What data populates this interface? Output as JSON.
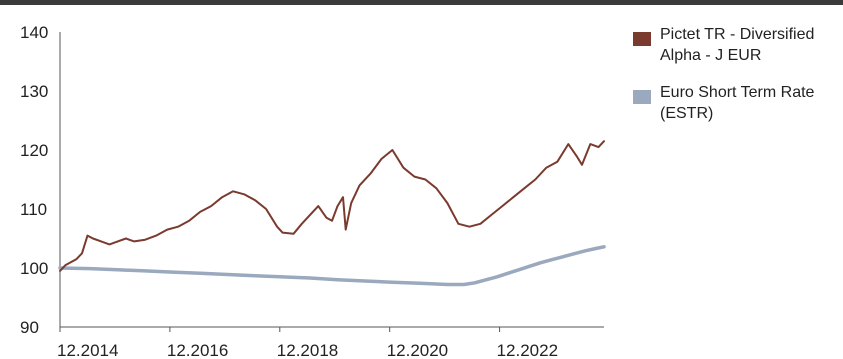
{
  "chart_data": {
    "type": "line",
    "title": "",
    "xlabel": "",
    "ylabel": "",
    "x_ticks": [
      "12.2014",
      "12.2016",
      "12.2018",
      "12.2020",
      "12.2022"
    ],
    "x_range": [
      2014.95,
      2024.85
    ],
    "y_ticks": [
      90,
      100,
      110,
      120,
      130,
      140
    ],
    "ylim": [
      90,
      140
    ],
    "grid": false,
    "legend_position": "right",
    "series": [
      {
        "name": "Pictet TR - Diversified Alpha - J EUR",
        "color": "#7a3b2e",
        "x": [
          2014.95,
          2015.05,
          2015.15,
          2015.25,
          2015.35,
          2015.45,
          2015.55,
          2015.7,
          2015.85,
          2016.0,
          2016.15,
          2016.3,
          2016.5,
          2016.7,
          2016.9,
          2017.1,
          2017.3,
          2017.5,
          2017.7,
          2017.9,
          2018.1,
          2018.3,
          2018.5,
          2018.7,
          2018.9,
          2019.0,
          2019.2,
          2019.35,
          2019.5,
          2019.65,
          2019.8,
          2019.9,
          2020.0,
          2020.1,
          2020.15,
          2020.25,
          2020.4,
          2020.6,
          2020.8,
          2021.0,
          2021.2,
          2021.4,
          2021.6,
          2021.8,
          2022.0,
          2022.2,
          2022.4,
          2022.6,
          2022.8,
          2023.0,
          2023.2,
          2023.4,
          2023.6,
          2023.8,
          2024.0,
          2024.2,
          2024.35,
          2024.45,
          2024.6,
          2024.75,
          2024.85
        ],
        "values": [
          99.5,
          100.5,
          101.0,
          101.5,
          102.5,
          105.5,
          105.0,
          104.5,
          104.0,
          104.5,
          105.0,
          104.5,
          104.8,
          105.5,
          106.5,
          107.0,
          108.0,
          109.5,
          110.5,
          112.0,
          113.0,
          112.5,
          111.5,
          110.0,
          107.0,
          106.0,
          105.8,
          107.5,
          109.0,
          110.5,
          108.5,
          108.0,
          110.5,
          112.0,
          106.5,
          111.0,
          114.0,
          116.0,
          118.5,
          120.0,
          117.0,
          115.5,
          115.0,
          113.5,
          111.0,
          107.5,
          107.0,
          107.5,
          109.0,
          110.5,
          112.0,
          113.5,
          115.0,
          117.0,
          118.0,
          121.0,
          119.0,
          117.5,
          121.0,
          120.5,
          121.5
        ]
      },
      {
        "name": "Euro Short Term Rate (ESTR)",
        "color": "#9aa9bd",
        "x": [
          2014.95,
          2015.5,
          2016.0,
          2016.5,
          2017.0,
          2017.5,
          2018.0,
          2018.5,
          2019.0,
          2019.5,
          2020.0,
          2020.5,
          2021.0,
          2021.5,
          2022.0,
          2022.3,
          2022.5,
          2022.7,
          2022.9,
          2023.1,
          2023.3,
          2023.5,
          2023.7,
          2023.9,
          2024.1,
          2024.3,
          2024.5,
          2024.7,
          2024.85
        ],
        "values": [
          100.0,
          99.9,
          99.7,
          99.5,
          99.3,
          99.1,
          98.9,
          98.7,
          98.5,
          98.3,
          98.0,
          97.8,
          97.6,
          97.4,
          97.2,
          97.2,
          97.5,
          98.0,
          98.5,
          99.1,
          99.7,
          100.3,
          100.9,
          101.4,
          101.9,
          102.4,
          102.9,
          103.3,
          103.6
        ]
      }
    ]
  }
}
